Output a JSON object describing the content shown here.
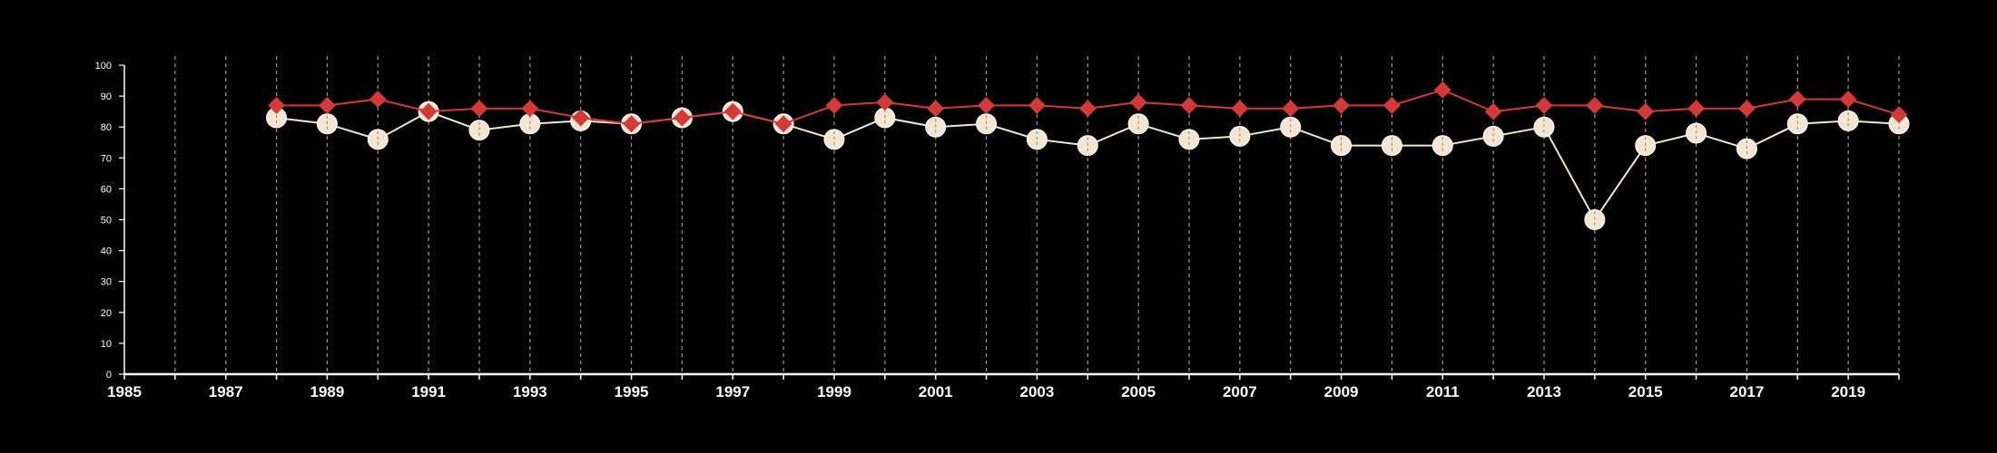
{
  "chart_data": {
    "type": "line",
    "title": "",
    "xlabel": "",
    "ylabel": "",
    "xlim": [
      1985,
      2020
    ],
    "ylim": [
      0,
      100
    ],
    "x_ticks": [
      1985,
      1987,
      1989,
      1991,
      1993,
      1995,
      1997,
      1999,
      2001,
      2003,
      2005,
      2007,
      2009,
      2011,
      2013,
      2015,
      2017,
      2019
    ],
    "y_ticks": [
      0,
      10,
      20,
      30,
      40,
      50,
      60,
      70,
      80,
      90,
      100
    ],
    "grid": "vertical dashed lines at every year",
    "legend": "none",
    "x": [
      1988,
      1989,
      1990,
      1991,
      1992,
      1993,
      1994,
      1995,
      1996,
      1997,
      1998,
      1999,
      2000,
      2001,
      2002,
      2003,
      2004,
      2005,
      2006,
      2007,
      2008,
      2009,
      2010,
      2011,
      2012,
      2013,
      2014,
      2015,
      2016,
      2017,
      2018,
      2019,
      2020
    ],
    "series": [
      {
        "marker": "circle",
        "color": "#f5e6d3",
        "values": [
          83,
          81,
          76,
          85,
          79,
          81,
          82,
          81,
          83,
          85,
          81,
          76,
          83,
          80,
          81,
          76,
          74,
          81,
          76,
          77,
          80,
          74,
          74,
          74,
          77,
          80,
          50,
          74,
          78,
          73,
          81,
          82,
          81
        ]
      },
      {
        "marker": "diamond",
        "color": "#d23a3a",
        "values": [
          87,
          87,
          89,
          85,
          86,
          86,
          83,
          81,
          83,
          85,
          81,
          87,
          88,
          86,
          87,
          87,
          86,
          88,
          87,
          86,
          86,
          87,
          87,
          92,
          85,
          87,
          87,
          85,
          86,
          86,
          89,
          89,
          84
        ]
      }
    ]
  }
}
